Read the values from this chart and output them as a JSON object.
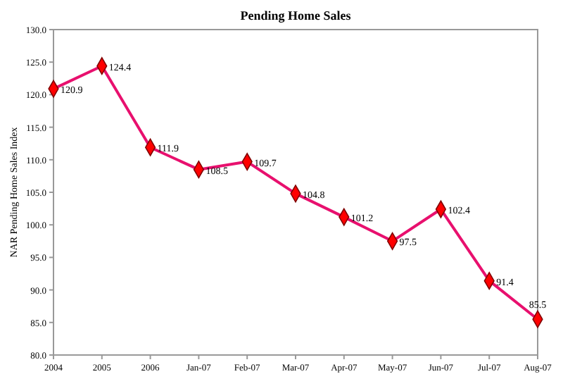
{
  "chart_data": {
    "type": "line",
    "title": "Pending Home Sales",
    "ylabel": "NAR Pending Home Sales Index",
    "categories": [
      "2004",
      "2005",
      "2006",
      "Jan-07",
      "Feb-07",
      "Mar-07",
      "Apr-07",
      "May-07",
      "Jun-07",
      "Jul-07",
      "Aug-07"
    ],
    "series": [
      {
        "color": "#e8106e",
        "values": [
          120.9,
          124.4,
          111.9,
          108.5,
          109.7,
          104.8,
          101.2,
          97.5,
          102.4,
          91.4,
          85.5
        ]
      }
    ],
    "ylim": [
      80,
      130
    ],
    "yticks": [
      {
        "value": 80,
        "label": "80.0"
      },
      {
        "value": 85,
        "label": "85.0"
      },
      {
        "value": 90,
        "label": "90.0"
      },
      {
        "value": 95,
        "label": "95.0"
      },
      {
        "value": 100,
        "label": "100.0"
      },
      {
        "value": 105,
        "label": "105.0"
      },
      {
        "value": 110,
        "label": "110.0"
      },
      {
        "value": 115,
        "label": "115.0"
      },
      {
        "value": 120,
        "label": "120.0"
      },
      {
        "value": 125,
        "label": "125.0"
      },
      {
        "value": 130,
        "label": "130.0"
      }
    ],
    "marker": "diamond",
    "line_style": "solid",
    "data_labels": true
  }
}
